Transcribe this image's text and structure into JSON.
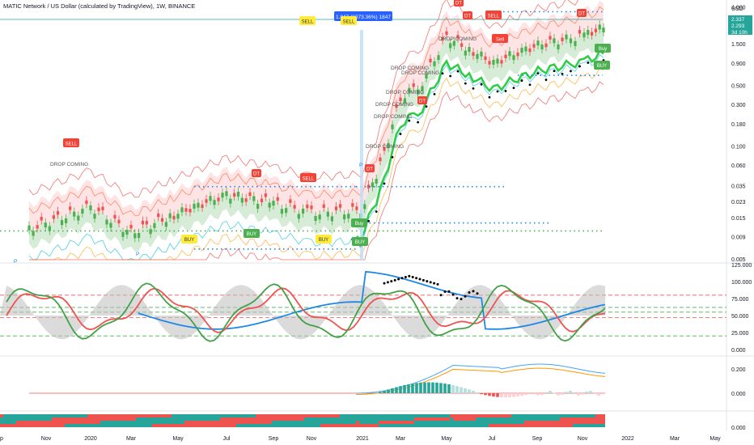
{
  "header": {
    "title": "MATIC Network / US Dollar (calculated by TradingView), 1W, BINANCE"
  },
  "price_axis": {
    "unit": "USD",
    "ticks": [
      "4.000",
      "1.500",
      "0.900",
      "0.500",
      "0.300",
      "0.180",
      "0.100",
      "0.060",
      "0.035",
      "0.023",
      "0.015",
      "0.009",
      "0.005"
    ],
    "badges": [
      {
        "text": "2.337",
        "color": "#26a69a"
      },
      {
        "text": "2.293",
        "color": "#26a69a"
      },
      {
        "text": "3d 10h",
        "color": "#26a69a"
      }
    ]
  },
  "oscillator_axis": {
    "ticks": [
      "125.000",
      "100.000",
      "75.000",
      "50.000",
      "25.000",
      "0.000"
    ]
  },
  "macd_axis": {
    "ticks": [
      "0.200",
      "0.000"
    ]
  },
  "strip_axis": {
    "ticks": [
      "0.000"
    ]
  },
  "time_axis": {
    "labels": [
      "p",
      "Nov",
      "2020",
      "Mar",
      "May",
      "Jul",
      "Sep",
      "Nov",
      "2021",
      "Mar",
      "May",
      "Jul",
      "Sep",
      "Nov",
      "2022",
      "Mar",
      "May"
    ]
  },
  "tooltip": {
    "text": "1.847 (6073.36%) 1847",
    "color": "#2962ff"
  },
  "signals": {
    "sell": [
      "SELL",
      "SELL",
      "SELL",
      "SELL",
      "SELL",
      "Sell"
    ],
    "buy": [
      "BUY",
      "BUY",
      "BUY",
      "BUY",
      "Buy",
      "Buy",
      "BUY"
    ],
    "dt": [
      "DT",
      "DT",
      "DT",
      "DT",
      "DT",
      "DT"
    ],
    "drop": [
      "DROP COMING",
      "DROP COMING",
      "DROP COMING",
      "DROP COMING",
      "DROP COMING",
      "DROP COMING",
      "DROP COMING",
      "DROP COMING"
    ],
    "p": [
      "P",
      "P",
      "P"
    ]
  },
  "colors": {
    "bull": "#26a69a",
    "bear": "#ef5350",
    "green_signal": "#4caf50",
    "red_signal": "#f44336",
    "yellow_signal": "#ffeb3b",
    "osc_green": "#43a047",
    "osc_red": "#ef5350",
    "osc_blue": "#1e88e5"
  },
  "chart_data": {
    "type": "line",
    "title": "MATIC Network / US Dollar (calculated by TradingView), 1W, BINANCE",
    "x": [
      "2019-11",
      "2020-01",
      "2020-03",
      "2020-05",
      "2020-07",
      "2020-09",
      "2020-11",
      "2021-01",
      "2021-02",
      "2021-03",
      "2021-04",
      "2021-05",
      "2021-06",
      "2021-07",
      "2021-08",
      "2021-09",
      "2021-10",
      "2021-11",
      "2021-12"
    ],
    "series": [
      {
        "values": [
          0.011,
          0.02,
          0.01,
          0.016,
          0.028,
          0.022,
          0.017,
          0.018,
          0.06,
          0.35,
          0.55,
          1.8,
          1.3,
          0.9,
          1.2,
          1.5,
          1.7,
          1.9,
          2.3
        ]
      }
    ],
    "ylim": [
      0.005,
      4.0
    ],
    "log_y": true,
    "grid": false
  }
}
